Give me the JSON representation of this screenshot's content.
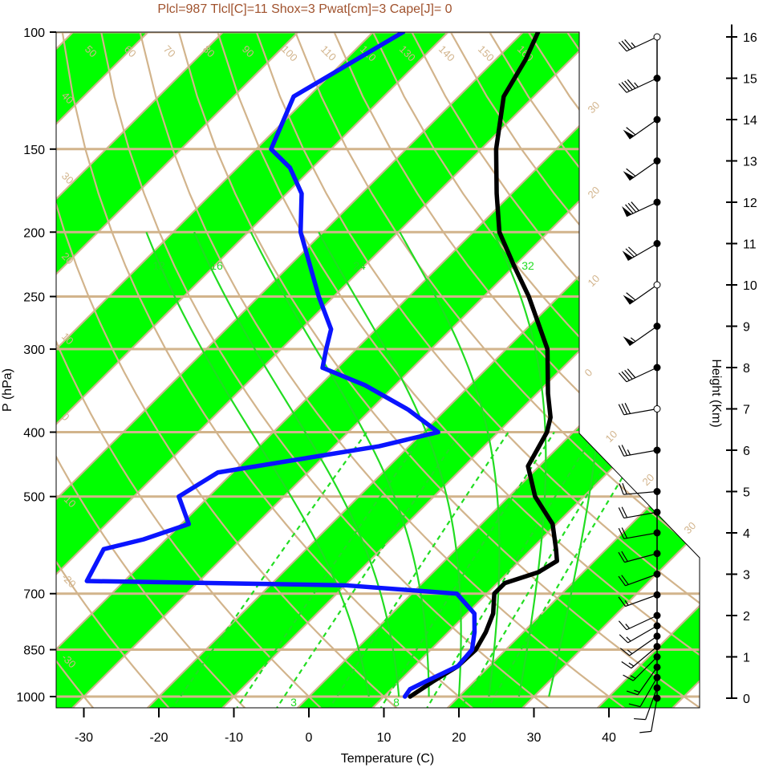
{
  "chart_data": {
    "type": "line",
    "title": "Plcl=987 Tlcl[C]=11 Shox=3 Pwat[cm]=3 Cape[J]= 0",
    "xlabel": "Temperature (C)",
    "ylabel": "P (hPa)",
    "y2label": "Height (Km)",
    "x_ticks": [
      -30,
      -20,
      -10,
      0,
      10,
      20,
      30,
      40
    ],
    "p_ticks": [
      100,
      150,
      200,
      250,
      300,
      400,
      500,
      700,
      850,
      1000
    ],
    "height_ticks": [
      0,
      1,
      2,
      3,
      4,
      5,
      6,
      7,
      8,
      9,
      10,
      11,
      12,
      13,
      14,
      15,
      16
    ],
    "grid": true,
    "series": [
      {
        "role": "temperature",
        "color": "#000000",
        "points": [
          {
            "p": 1000,
            "t": 13.5
          },
          {
            "p": 950,
            "t": 14.5
          },
          {
            "p": 900,
            "t": 15.8
          },
          {
            "p": 850,
            "t": 16.0
          },
          {
            "p": 800,
            "t": 15.0
          },
          {
            "p": 750,
            "t": 13.5
          },
          {
            "p": 700,
            "t": 11.0
          },
          {
            "p": 675,
            "t": 11.0
          },
          {
            "p": 650,
            "t": 14.0
          },
          {
            "p": 625,
            "t": 15.0
          },
          {
            "p": 600,
            "t": 13.3
          },
          {
            "p": 550,
            "t": 9.5
          },
          {
            "p": 500,
            "t": 3.5
          },
          {
            "p": 450,
            "t": -1.5
          },
          {
            "p": 400,
            "t": -3.5
          },
          {
            "p": 380,
            "t": -5.0
          },
          {
            "p": 350,
            "t": -8.5
          },
          {
            "p": 300,
            "t": -14.5
          },
          {
            "p": 250,
            "t": -24.0
          },
          {
            "p": 225,
            "t": -30.0
          },
          {
            "p": 200,
            "t": -36.5
          },
          {
            "p": 175,
            "t": -42.0
          },
          {
            "p": 150,
            "t": -48.0
          },
          {
            "p": 125,
            "t": -54.0
          },
          {
            "p": 110,
            "t": -56.0
          },
          {
            "p": 100,
            "t": -58.0
          }
        ]
      },
      {
        "role": "dewpoint",
        "color": "#0a14ff",
        "points": [
          {
            "p": 1000,
            "t": 12.8
          },
          {
            "p": 975,
            "t": 12.5
          },
          {
            "p": 950,
            "t": 13.5
          },
          {
            "p": 900,
            "t": 15.8
          },
          {
            "p": 850,
            "t": 15.5
          },
          {
            "p": 800,
            "t": 13.5
          },
          {
            "p": 750,
            "t": 11.0
          },
          {
            "p": 700,
            "t": 6.0
          },
          {
            "p": 680,
            "t": -10.0
          },
          {
            "p": 670,
            "t": -45.0
          },
          {
            "p": 600,
            "t": -47.0
          },
          {
            "p": 580,
            "t": -43.0
          },
          {
            "p": 550,
            "t": -39.0
          },
          {
            "p": 500,
            "t": -44.0
          },
          {
            "p": 460,
            "t": -42.0
          },
          {
            "p": 420,
            "t": -24.0
          },
          {
            "p": 400,
            "t": -18.0
          },
          {
            "p": 370,
            "t": -25.0
          },
          {
            "p": 340,
            "t": -34.0
          },
          {
            "p": 320,
            "t": -42.0
          },
          {
            "p": 300,
            "t": -44.0
          },
          {
            "p": 280,
            "t": -46.0
          },
          {
            "p": 250,
            "t": -52.0
          },
          {
            "p": 200,
            "t": -63.0
          },
          {
            "p": 175,
            "t": -68.0
          },
          {
            "p": 160,
            "t": -73.0
          },
          {
            "p": 150,
            "t": -78.0
          },
          {
            "p": 125,
            "t": -82.0
          },
          {
            "p": 100,
            "t": -76.0
          }
        ]
      }
    ],
    "dry_adiabat_labels": [
      "50",
      "60",
      "70",
      "80",
      "90",
      "100",
      "110",
      "120",
      "130",
      "140",
      "150",
      "160"
    ],
    "edge_labels": [
      "40",
      "30",
      "20",
      "10",
      "0",
      "-10",
      "-20",
      "-30"
    ],
    "right_edge_labels": [
      "30",
      "20",
      "10",
      "0",
      "10",
      "20",
      "30"
    ],
    "moist_adiabat_labels": [
      "12",
      "16",
      "24",
      "32"
    ],
    "mixing_ratio_labels": [
      "3",
      "8"
    ],
    "winds": [
      {
        "h": 0.0,
        "dir": 190,
        "spd": 10
      },
      {
        "h": 0.25,
        "dir": 200,
        "spd": 10
      },
      {
        "h": 0.5,
        "dir": 210,
        "spd": 10
      },
      {
        "h": 0.75,
        "dir": 215,
        "spd": 15
      },
      {
        "h": 1.0,
        "dir": 225,
        "spd": 15
      },
      {
        "h": 1.25,
        "dir": 230,
        "spd": 15
      },
      {
        "h": 1.5,
        "dir": 235,
        "spd": 15
      },
      {
        "h": 1.75,
        "dir": 240,
        "spd": 15
      },
      {
        "h": 2.0,
        "dir": 245,
        "spd": 15
      },
      {
        "h": 2.5,
        "dir": 250,
        "spd": 15
      },
      {
        "h": 3.0,
        "dir": 250,
        "spd": 20
      },
      {
        "h": 3.5,
        "dir": 255,
        "spd": 20
      },
      {
        "h": 4.0,
        "dir": 260,
        "spd": 20
      },
      {
        "h": 4.5,
        "dir": 260,
        "spd": 20
      },
      {
        "h": 5.0,
        "dir": 265,
        "spd": 20
      },
      {
        "h": 6.0,
        "dir": 260,
        "spd": 25
      },
      {
        "h": 7.0,
        "dir": 260,
        "spd": 30
      },
      {
        "h": 8.0,
        "dir": 245,
        "spd": 40
      },
      {
        "h": 9.0,
        "dir": 235,
        "spd": 55
      },
      {
        "h": 10.0,
        "dir": 235,
        "spd": 60
      },
      {
        "h": 11.0,
        "dir": 240,
        "spd": 70
      },
      {
        "h": 12.0,
        "dir": 245,
        "spd": 80
      },
      {
        "h": 13.0,
        "dir": 235,
        "spd": 60
      },
      {
        "h": 14.0,
        "dir": 235,
        "spd": 60
      },
      {
        "h": 15.0,
        "dir": 245,
        "spd": 45
      },
      {
        "h": 16.0,
        "dir": 245,
        "spd": 35
      }
    ],
    "colors": {
      "band": "#00ff00",
      "isopleth": "#d2b48c",
      "moist": "#22dd22",
      "title": "#a0522d"
    }
  }
}
